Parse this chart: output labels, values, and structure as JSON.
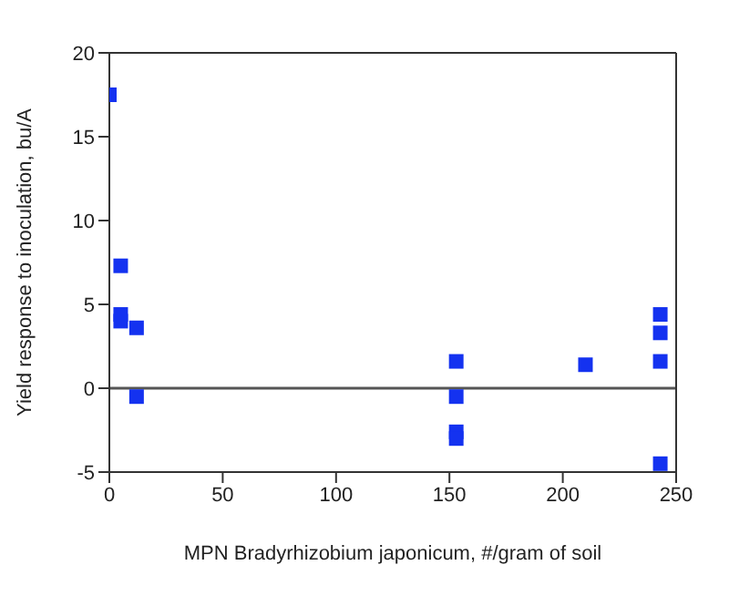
{
  "chart_data": {
    "type": "scatter",
    "xlabel": "MPN Bradyrhizobium japonicum, #/gram of soil",
    "ylabel": "Yield response to inoculation, bu/A",
    "x": [
      0,
      5,
      5,
      5,
      12,
      12,
      153,
      153,
      153,
      153,
      210,
      243,
      243,
      243,
      243
    ],
    "values": [
      17.5,
      7.3,
      4.4,
      4.0,
      3.6,
      -0.5,
      1.6,
      -0.5,
      -2.6,
      -3.0,
      1.4,
      4.4,
      3.3,
      1.6,
      -4.5
    ],
    "color": "#1432f0",
    "marker": "square",
    "xlim": [
      0,
      250
    ],
    "xticks": [
      0,
      50,
      100,
      150,
      200,
      250
    ],
    "ylim": [
      -5,
      20
    ],
    "yticks": [
      -5,
      0,
      5,
      10,
      15,
      20
    ],
    "ref_lines": [
      {
        "axis": "y",
        "value": 0,
        "color": "#555555"
      }
    ],
    "grid": false,
    "legend": false
  }
}
